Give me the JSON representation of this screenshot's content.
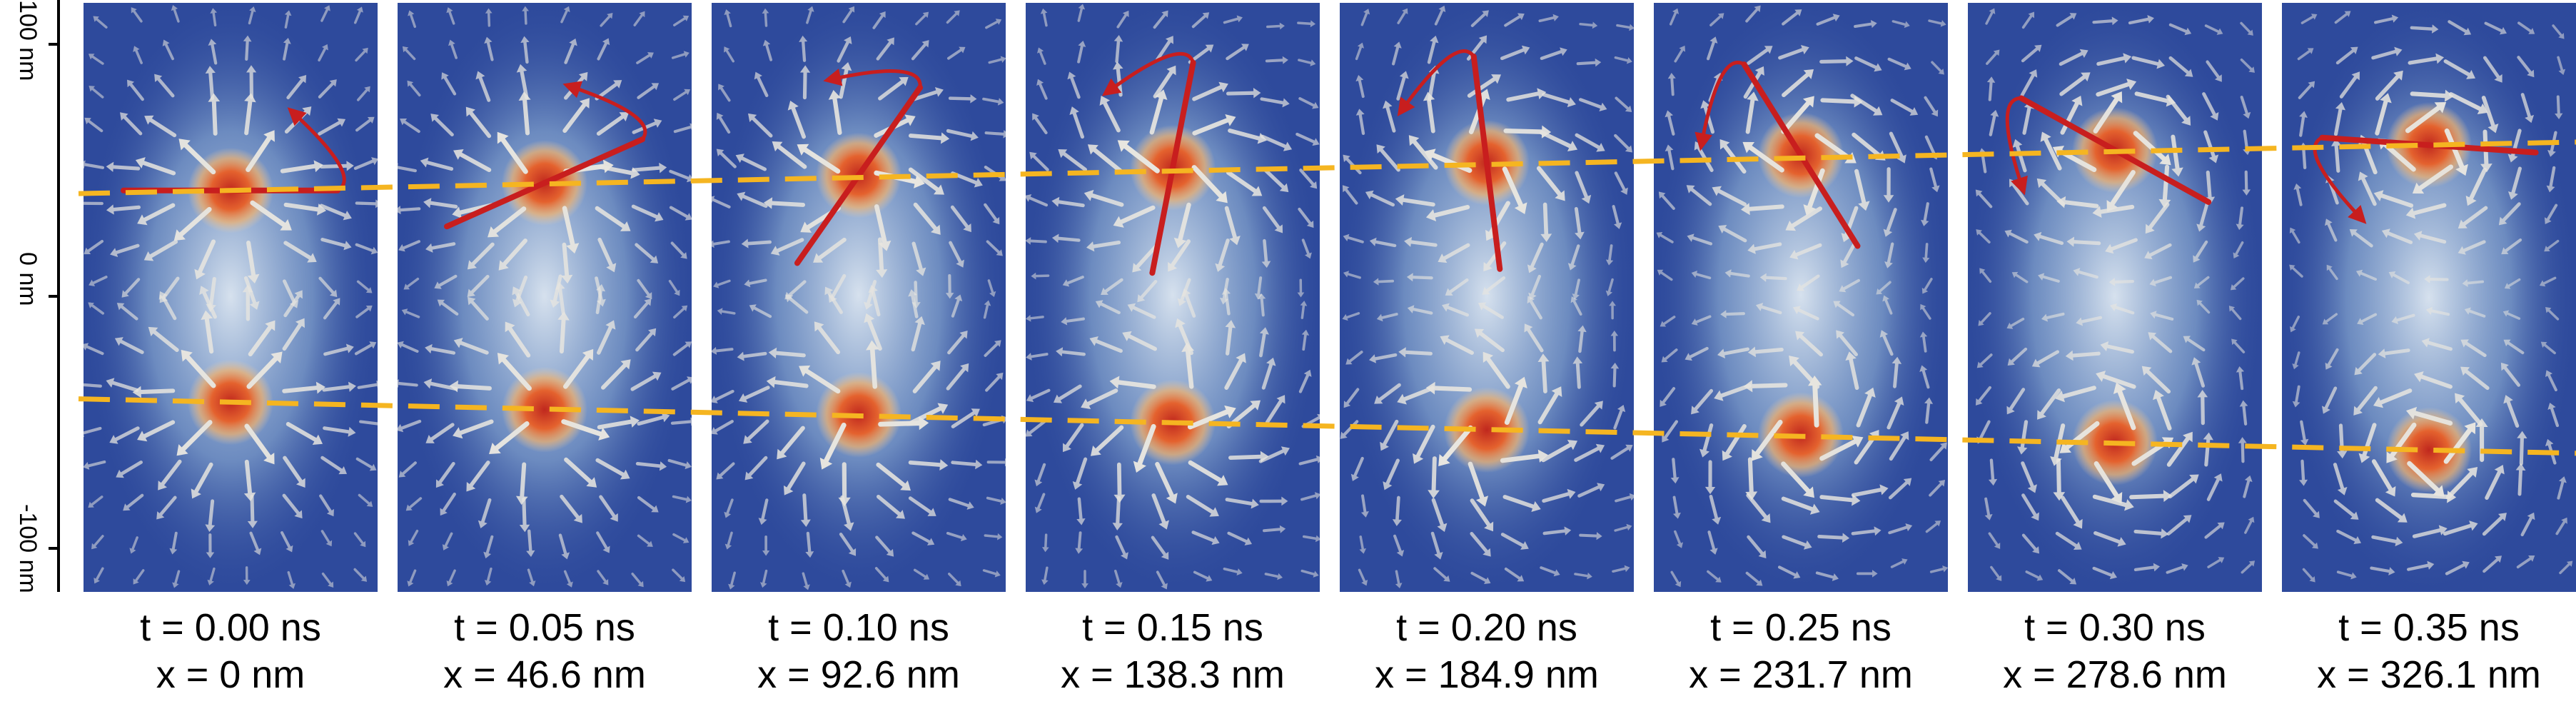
{
  "axis": {
    "ticks": [
      "100 nm",
      "0 nm",
      "-100 nm"
    ]
  },
  "frames": [
    {
      "time_label": "t = 0.00 ns",
      "x_label": "x = 0 nm",
      "top_core_y_nm": 42,
      "bottom_core_y_nm": -42,
      "bar_angle_deg": 0
    },
    {
      "time_label": "t = 0.05 ns",
      "x_label": "x = 46.6 nm",
      "top_core_y_nm": 45,
      "bottom_core_y_nm": -45,
      "bar_angle_deg": 24
    },
    {
      "time_label": "t = 0.10 ns",
      "x_label": "x = 92.6 nm",
      "top_core_y_nm": 48,
      "bottom_core_y_nm": -47,
      "bar_angle_deg": 55
    },
    {
      "time_label": "t = 0.15 ns",
      "x_label": "x = 138.3 nm",
      "top_core_y_nm": 51,
      "bottom_core_y_nm": -50,
      "bar_angle_deg": 79
    },
    {
      "time_label": "t = 0.20 ns",
      "x_label": "x = 184.9 nm",
      "top_core_y_nm": 53,
      "bottom_core_y_nm": -53,
      "bar_angle_deg": 97
    },
    {
      "time_label": "t = 0.25 ns",
      "x_label": "x = 231.7 nm",
      "top_core_y_nm": 56,
      "bottom_core_y_nm": -55,
      "bar_angle_deg": 122
    },
    {
      "time_label": "t = 0.30 ns",
      "x_label": "x = 278.6 nm",
      "top_core_y_nm": 58,
      "bottom_core_y_nm": -58,
      "bar_angle_deg": 151
    },
    {
      "time_label": "t = 0.35 ns",
      "x_label": "x = 326.1 nm",
      "top_core_y_nm": 60,
      "bottom_core_y_nm": -61,
      "bar_angle_deg": 176
    }
  ],
  "colors": {
    "background_field": "#2e4a9c",
    "field_glow": "#c9dcec",
    "core_red": "#d6402c",
    "core_orange": "#f08a3a",
    "arrow": "#e8e6e0",
    "bar": "#c81e1e",
    "dashed_line": "#f5b521"
  },
  "icons": {
    "rotation": "curved-arrow-icon",
    "spin": "arrow-icon"
  }
}
